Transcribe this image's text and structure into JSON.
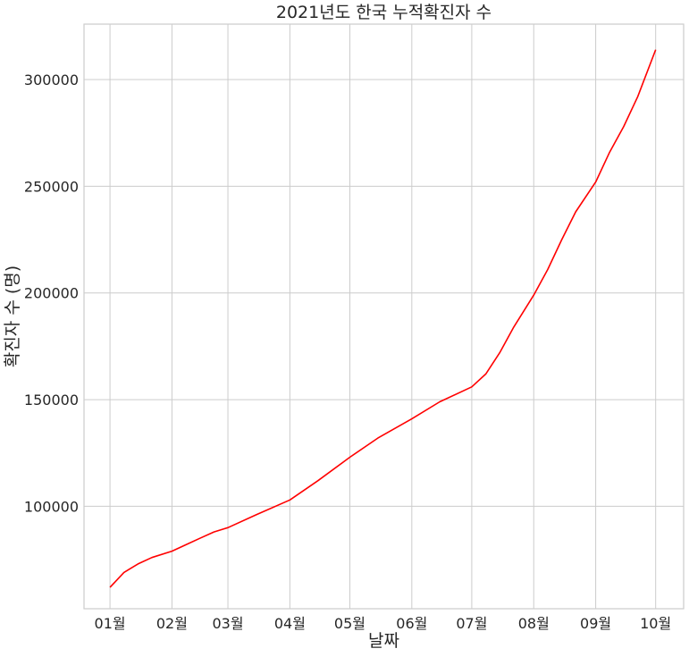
{
  "chart_data": {
    "type": "line",
    "title": "2021년도 한국 누적확진자 수",
    "xlabel": "날짜",
    "ylabel": "확진자 수 (명)",
    "x_tick_labels": [
      "01월",
      "02월",
      "03월",
      "04월",
      "05월",
      "06월",
      "07월",
      "08월",
      "09월",
      "10월"
    ],
    "x_ticks": [
      "2021-01-01",
      "2021-02-01",
      "2021-03-01",
      "2021-04-01",
      "2021-05-01",
      "2021-06-01",
      "2021-07-01",
      "2021-08-01",
      "2021-09-01",
      "2021-10-01"
    ],
    "y_ticks": [
      100000,
      150000,
      200000,
      250000,
      300000
    ],
    "xlim": [
      "2020-12-19",
      "2021-10-15"
    ],
    "ylim": [
      52000,
      326000
    ],
    "grid": true,
    "colors": {
      "line": "#ff0000",
      "grid": "#cccccc",
      "text": "#262626"
    },
    "series": [
      {
        "x": [
          "2021-01-01",
          "2021-01-08",
          "2021-01-15",
          "2021-01-22",
          "2021-02-01",
          "2021-02-08",
          "2021-02-15",
          "2021-02-22",
          "2021-03-01",
          "2021-03-15",
          "2021-04-01",
          "2021-04-15",
          "2021-05-01",
          "2021-05-15",
          "2021-06-01",
          "2021-06-15",
          "2021-07-01",
          "2021-07-08",
          "2021-07-15",
          "2021-07-22",
          "2021-08-01",
          "2021-08-08",
          "2021-08-15",
          "2021-08-22",
          "2021-09-01",
          "2021-09-08",
          "2021-09-15",
          "2021-09-22",
          "2021-10-01"
        ],
        "y": [
          62000,
          69000,
          73000,
          76000,
          79000,
          82000,
          85000,
          88000,
          90000,
          96000,
          103000,
          112000,
          123000,
          132000,
          141000,
          149000,
          156000,
          162000,
          172000,
          184000,
          199000,
          211000,
          225000,
          238000,
          252000,
          266000,
          278000,
          292000,
          314000
        ]
      }
    ]
  }
}
